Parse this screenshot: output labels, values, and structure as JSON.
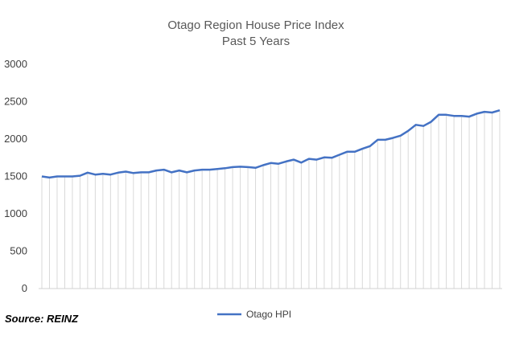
{
  "chart_data": {
    "type": "line",
    "title": "Otago Region House Price Index",
    "subtitle": "Past 5 Years",
    "xlabel": "",
    "ylabel": "",
    "ylim": [
      0,
      3000
    ],
    "yticks": [
      0,
      500,
      1000,
      1500,
      2000,
      2500,
      3000
    ],
    "grid": "vertical-dropdown-lines",
    "legend_position": "bottom",
    "series": [
      {
        "name": "Otago HPI",
        "color": "#4472C4",
        "values": [
          1500,
          1485,
          1500,
          1500,
          1500,
          1510,
          1550,
          1525,
          1535,
          1525,
          1550,
          1565,
          1545,
          1555,
          1555,
          1580,
          1590,
          1555,
          1580,
          1555,
          1580,
          1590,
          1590,
          1600,
          1610,
          1625,
          1630,
          1625,
          1615,
          1650,
          1680,
          1670,
          1700,
          1725,
          1685,
          1735,
          1725,
          1755,
          1750,
          1790,
          1830,
          1830,
          1870,
          1905,
          1990,
          1990,
          2015,
          2045,
          2110,
          2190,
          2175,
          2230,
          2325,
          2325,
          2310,
          2310,
          2300,
          2340,
          2365,
          2355,
          2385
        ]
      }
    ]
  },
  "source_label": "Source:  REINZ"
}
